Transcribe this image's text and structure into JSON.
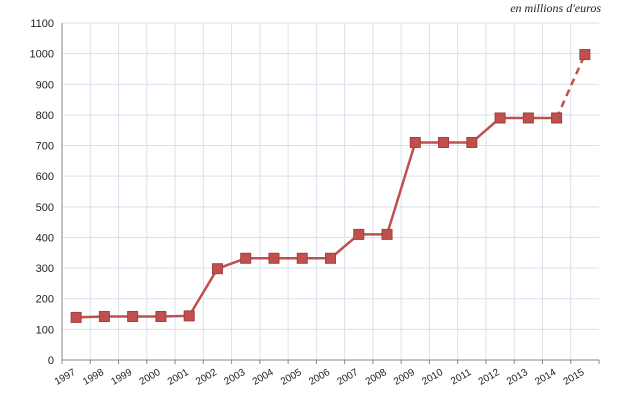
{
  "unit_label": "en millions d'euros",
  "chart_data": {
    "type": "line",
    "title": "",
    "xlabel": "",
    "ylabel": "",
    "ylim": [
      0,
      1100
    ],
    "y_ticks": [
      0,
      100,
      200,
      300,
      400,
      500,
      600,
      700,
      800,
      900,
      1000,
      1100
    ],
    "grid": true,
    "categories": [
      "1997",
      "1998",
      "1999",
      "2000",
      "2001",
      "2002",
      "2003",
      "2004",
      "2005",
      "2006",
      "2007",
      "2008",
      "2009",
      "2010",
      "2011",
      "2012",
      "2013",
      "2014",
      "2015"
    ],
    "series": [
      {
        "values": [
          139,
          142,
          142,
          142,
          144,
          298,
          332,
          332,
          332,
          332,
          410,
          410,
          710,
          710,
          710,
          790,
          790,
          790,
          997
        ],
        "color": "#c0504d",
        "dashed_last_segment": true
      }
    ]
  }
}
